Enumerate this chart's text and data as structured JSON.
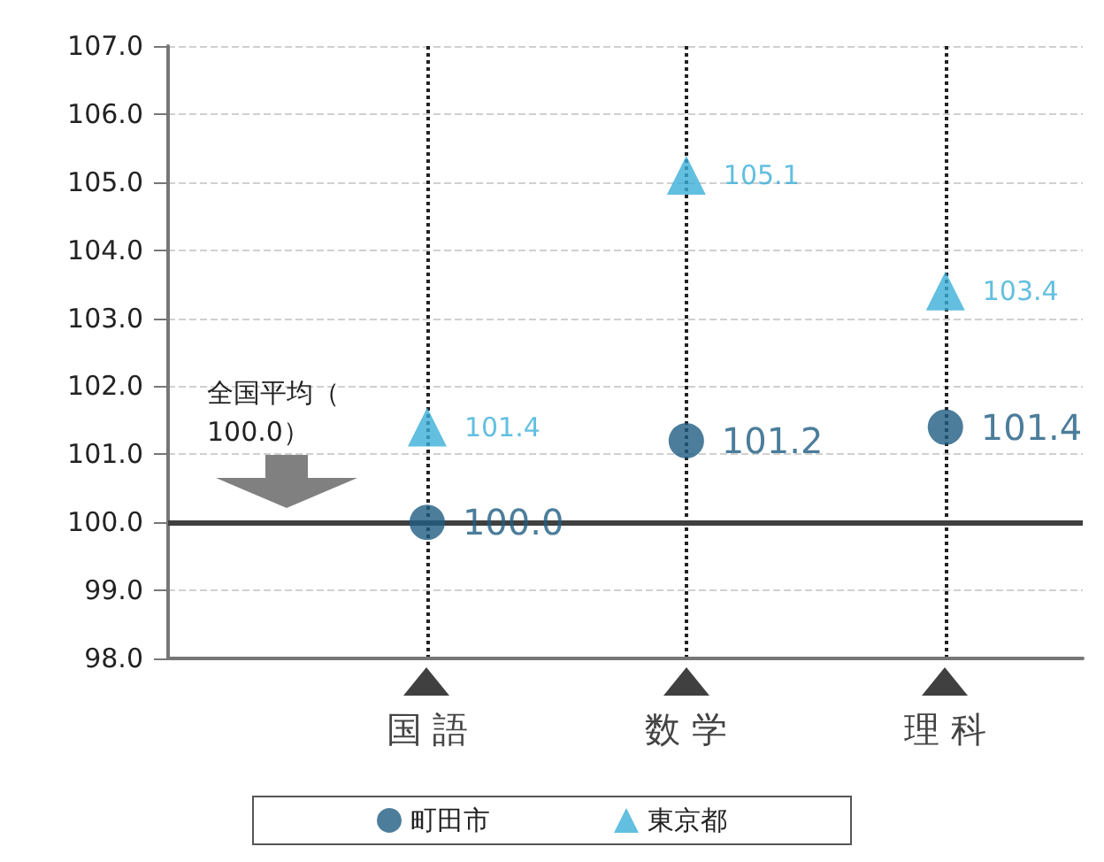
{
  "chart_data": {
    "type": "scatter",
    "categories": [
      "国 語",
      "数 学",
      "理 科"
    ],
    "series": [
      {
        "name": "町田市",
        "color": "#1f5c82",
        "marker": "circle",
        "values": [
          100.0,
          101.2,
          101.4
        ],
        "value_labels": [
          "100.0",
          "101.2",
          "101.4"
        ]
      },
      {
        "name": "東京都",
        "color": "#3bafd8",
        "marker": "triangle",
        "values": [
          101.4,
          105.1,
          103.4
        ],
        "value_labels": [
          "101.4",
          "105.1",
          "103.4"
        ]
      }
    ],
    "ylim": [
      98,
      107
    ],
    "yticks": [
      {
        "value": 98,
        "label": "98.0"
      },
      {
        "value": 99,
        "label": "99.0"
      },
      {
        "value": 100,
        "label": "100.0"
      },
      {
        "value": 101,
        "label": "101.0"
      },
      {
        "value": 102,
        "label": "102.0"
      },
      {
        "value": 103,
        "label": "103.0"
      },
      {
        "value": 104,
        "label": "104.0"
      },
      {
        "value": 105,
        "label": "105.0"
      },
      {
        "value": 106,
        "label": "106.0"
      },
      {
        "value": 107,
        "label": "107.0"
      }
    ],
    "ref_lines": [
      {
        "axis": "y",
        "value": 100,
        "label": "全国平均（100.0）",
        "color": "#404040"
      }
    ],
    "grid": true,
    "legend": "bottom"
  }
}
